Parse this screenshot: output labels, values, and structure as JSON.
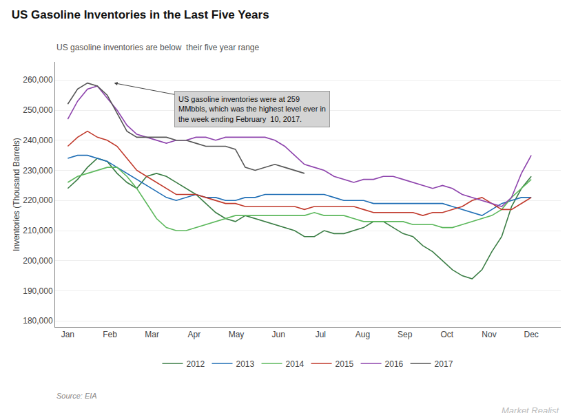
{
  "chart_data": {
    "type": "line",
    "title": "US Gasoline Inventories in the Last Five Years",
    "subtitle": "US gasoline inventories are below  their five year range",
    "ylabel": "Inventories (Thousand Barrels)",
    "source": "Source: EIA",
    "watermark": "Market Realist",
    "x": [
      0,
      0.234043,
      0.468085,
      0.702128,
      0.93617,
      1.170213,
      1.404255,
      1.638298,
      1.87234,
      2.106383,
      2.340426,
      2.574468,
      2.808511,
      3.042553,
      3.276596,
      3.510638,
      3.744681,
      3.978723,
      4.212766,
      4.446809,
      4.680851,
      4.914894,
      5.148936,
      5.382979,
      5.617021,
      5.851064,
      6.085106,
      6.319149,
      6.553191,
      6.787234,
      7.021277,
      7.255319,
      7.489362,
      7.723404,
      7.957447,
      8.191489,
      8.425532,
      8.659574,
      8.893617,
      9.12766,
      9.361702,
      9.595745,
      9.829787,
      10.06383,
      10.297872,
      10.531915,
      10.765957,
      11
    ],
    "xlim": [
      -0.3,
      11.7
    ],
    "xticks": [
      {
        "value": 0,
        "label": "Jan"
      },
      {
        "value": 1,
        "label": "Feb"
      },
      {
        "value": 2,
        "label": "Mar"
      },
      {
        "value": 3,
        "label": "Apr"
      },
      {
        "value": 4,
        "label": "May"
      },
      {
        "value": 5,
        "label": "Jun"
      },
      {
        "value": 6,
        "label": "Jul"
      },
      {
        "value": 7,
        "label": "Aug"
      },
      {
        "value": 8,
        "label": "Sep"
      },
      {
        "value": 9,
        "label": "Oct"
      },
      {
        "value": 10,
        "label": "Nov"
      },
      {
        "value": 11,
        "label": "Dec"
      }
    ],
    "ylim": [
      178000,
      266000
    ],
    "yticks": [
      {
        "value": 180000,
        "label": "180,000"
      },
      {
        "value": 190000,
        "label": "190,000"
      },
      {
        "value": 200000,
        "label": "200,000"
      },
      {
        "value": 210000,
        "label": "210,000"
      },
      {
        "value": 220000,
        "label": "220,000"
      },
      {
        "value": 230000,
        "label": "230,000"
      },
      {
        "value": 240000,
        "label": "240,000"
      },
      {
        "value": 250000,
        "label": "250,000"
      },
      {
        "value": 260000,
        "label": "260,000"
      }
    ],
    "grid": true,
    "legend": "bottom",
    "series": [
      {
        "name": "2012",
        "color": "#3a7d44",
        "values": [
          224000,
          227000,
          231000,
          234000,
          233000,
          229000,
          226000,
          224000,
          228000,
          229000,
          228000,
          226000,
          224000,
          222000,
          219000,
          216000,
          214000,
          213000,
          215000,
          214000,
          213000,
          212000,
          211000,
          210000,
          208000,
          208000,
          210000,
          209000,
          209000,
          210000,
          211000,
          213000,
          213000,
          211000,
          209000,
          208000,
          205000,
          203000,
          200000,
          197000,
          195000,
          194000,
          197000,
          203000,
          208000,
          218000,
          224000,
          228000
        ]
      },
      {
        "name": "2013",
        "color": "#1f6eb5",
        "values": [
          234000,
          235000,
          235000,
          234000,
          233000,
          231000,
          229000,
          227000,
          225000,
          223000,
          221000,
          220000,
          221000,
          222000,
          221000,
          221000,
          220000,
          220000,
          221000,
          221000,
          222000,
          222000,
          222000,
          222000,
          222000,
          222000,
          222000,
          221000,
          220000,
          220000,
          220000,
          219000,
          219000,
          219000,
          219000,
          219000,
          219000,
          219000,
          219000,
          218000,
          217000,
          216000,
          215000,
          217000,
          219000,
          220000,
          221000,
          221000
        ]
      },
      {
        "name": "2014",
        "color": "#5cb85c",
        "values": [
          226000,
          228000,
          229000,
          230000,
          231000,
          231000,
          228000,
          224000,
          219000,
          214000,
          211000,
          210000,
          210000,
          211000,
          212000,
          213000,
          214000,
          215000,
          215000,
          215000,
          215000,
          215000,
          215000,
          215000,
          215000,
          216000,
          215000,
          215000,
          215000,
          214000,
          213000,
          213000,
          213000,
          213000,
          213000,
          212000,
          212000,
          212000,
          211000,
          211000,
          212000,
          213000,
          214000,
          215000,
          217000,
          221000,
          224000,
          227000
        ]
      },
      {
        "name": "2015",
        "color": "#c0392b",
        "values": [
          238000,
          241000,
          243000,
          241000,
          240000,
          238000,
          234000,
          230000,
          228000,
          226000,
          224000,
          222000,
          222000,
          222000,
          221000,
          220000,
          219000,
          219000,
          218000,
          218000,
          218000,
          218000,
          218000,
          218000,
          217000,
          218000,
          218000,
          218000,
          218000,
          218000,
          217000,
          216000,
          216000,
          216000,
          216000,
          216000,
          215000,
          216000,
          216000,
          217000,
          218000,
          220000,
          221000,
          219000,
          217000,
          217000,
          219000,
          221000
        ]
      },
      {
        "name": "2016",
        "color": "#8e44ad",
        "values": [
          247000,
          253000,
          257000,
          258000,
          254000,
          250000,
          245000,
          242000,
          241000,
          240000,
          239000,
          240000,
          240000,
          241000,
          241000,
          240000,
          241000,
          241000,
          241000,
          241000,
          241000,
          240000,
          238000,
          235000,
          232000,
          231000,
          230000,
          228000,
          227000,
          226000,
          227000,
          227000,
          228000,
          228000,
          227000,
          226000,
          225000,
          224000,
          225000,
          224000,
          222000,
          221000,
          220000,
          219000,
          218000,
          221000,
          229000,
          235000
        ]
      },
      {
        "name": "2017",
        "color": "#555555",
        "values": [
          252000,
          257000,
          259000,
          258000,
          255000,
          249000,
          243000,
          241000,
          241000,
          241000,
          241000,
          240000,
          240000,
          239000,
          238000,
          238000,
          238000,
          237000,
          231000,
          230000,
          231000,
          232000,
          231000,
          230000,
          229000,
          null,
          null,
          null,
          null,
          null,
          null,
          null,
          null,
          null,
          null,
          null,
          null,
          null,
          null,
          null,
          null,
          null,
          null,
          null,
          null,
          null,
          null,
          null
        ]
      }
    ],
    "annotations": [
      {
        "text": "US gasoline inventories were at 259\nMMbbls, which was the highest level ever in\nthe week ending February  10, 2017.",
        "x": 1.1,
        "y": 259000
      }
    ]
  }
}
